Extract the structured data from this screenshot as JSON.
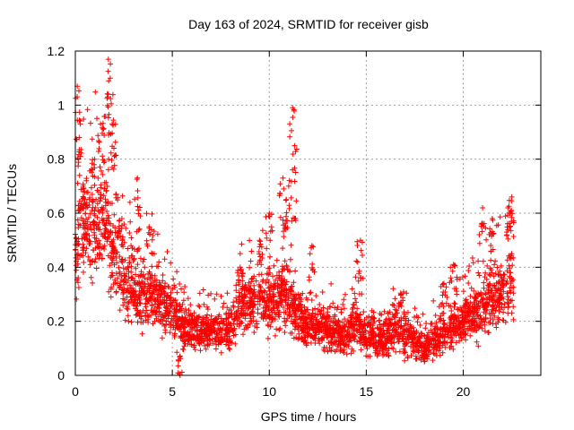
{
  "chart_data": {
    "type": "scatter",
    "title": "Day 163 of 2024, SRMTID for receiver gisb",
    "xlabel": "GPS time / hours",
    "ylabel": "SRMTID / TECUs",
    "xlim": [
      0,
      24
    ],
    "ylim": [
      0,
      1.2
    ],
    "xticks": [
      0,
      5,
      10,
      15,
      20
    ],
    "xtick_labels": [
      "0",
      "5",
      "10",
      "15",
      "20"
    ],
    "yticks": [
      0,
      0.2,
      0.4,
      0.6,
      0.8,
      1,
      1.2
    ],
    "ytick_labels": [
      "0",
      "0.2",
      "0.4",
      "0.6",
      "0.8",
      "1",
      "1.2"
    ],
    "grid": true,
    "marker": "+",
    "colors": {
      "marker": "#ff0000",
      "grid": "#a0a0a0",
      "axis": "#000000"
    },
    "series": [
      {
        "name": "SRMTID",
        "trend": [
          [
            0.0,
            0.45
          ],
          [
            0.5,
            0.55
          ],
          [
            1.0,
            0.55
          ],
          [
            1.5,
            0.6
          ],
          [
            2.0,
            0.45
          ],
          [
            2.5,
            0.35
          ],
          [
            3.0,
            0.3
          ],
          [
            3.5,
            0.3
          ],
          [
            4.0,
            0.3
          ],
          [
            4.5,
            0.25
          ],
          [
            5.0,
            0.25
          ],
          [
            5.5,
            0.17
          ],
          [
            6.0,
            0.16
          ],
          [
            7.0,
            0.17
          ],
          [
            7.5,
            0.16
          ],
          [
            8.0,
            0.18
          ],
          [
            8.5,
            0.26
          ],
          [
            9.0,
            0.26
          ],
          [
            9.5,
            0.28
          ],
          [
            10.0,
            0.26
          ],
          [
            10.5,
            0.3
          ],
          [
            11.0,
            0.3
          ],
          [
            11.5,
            0.2
          ],
          [
            12.0,
            0.17
          ],
          [
            13.0,
            0.17
          ],
          [
            14.0,
            0.14
          ],
          [
            14.5,
            0.2
          ],
          [
            15.0,
            0.14
          ],
          [
            16.0,
            0.14
          ],
          [
            16.5,
            0.18
          ],
          [
            17.0,
            0.14
          ],
          [
            17.5,
            0.12
          ],
          [
            18.0,
            0.09
          ],
          [
            18.5,
            0.13
          ],
          [
            19.0,
            0.16
          ],
          [
            20.0,
            0.2
          ],
          [
            20.5,
            0.22
          ],
          [
            21.0,
            0.25
          ],
          [
            21.5,
            0.28
          ],
          [
            22.0,
            0.3
          ],
          [
            22.6,
            0.35
          ]
        ],
        "peaks": [
          [
            0.1,
            1.07
          ],
          [
            0.2,
            0.88
          ],
          [
            0.4,
            0.7
          ],
          [
            1.0,
            0.8
          ],
          [
            1.3,
            0.93
          ],
          [
            1.7,
            1.17
          ],
          [
            1.8,
            1.1
          ],
          [
            1.9,
            0.93
          ],
          [
            2.4,
            0.58
          ],
          [
            3.2,
            0.73
          ],
          [
            3.8,
            0.55
          ],
          [
            4.5,
            0.35
          ],
          [
            5.4,
            0.0
          ],
          [
            8.5,
            0.4
          ],
          [
            9.5,
            0.5
          ],
          [
            10.0,
            0.6
          ],
          [
            10.7,
            0.73
          ],
          [
            11.0,
            0.7
          ],
          [
            11.2,
            0.99
          ],
          [
            11.3,
            0.85
          ],
          [
            11.5,
            0.3
          ],
          [
            12.2,
            0.48
          ],
          [
            14.7,
            0.5
          ],
          [
            16.8,
            0.3
          ],
          [
            19.0,
            0.34
          ],
          [
            19.5,
            0.41
          ],
          [
            21.0,
            0.62
          ],
          [
            21.5,
            0.58
          ],
          [
            22.3,
            0.62
          ],
          [
            22.5,
            0.66
          ]
        ],
        "point_count": 3200
      }
    ]
  }
}
